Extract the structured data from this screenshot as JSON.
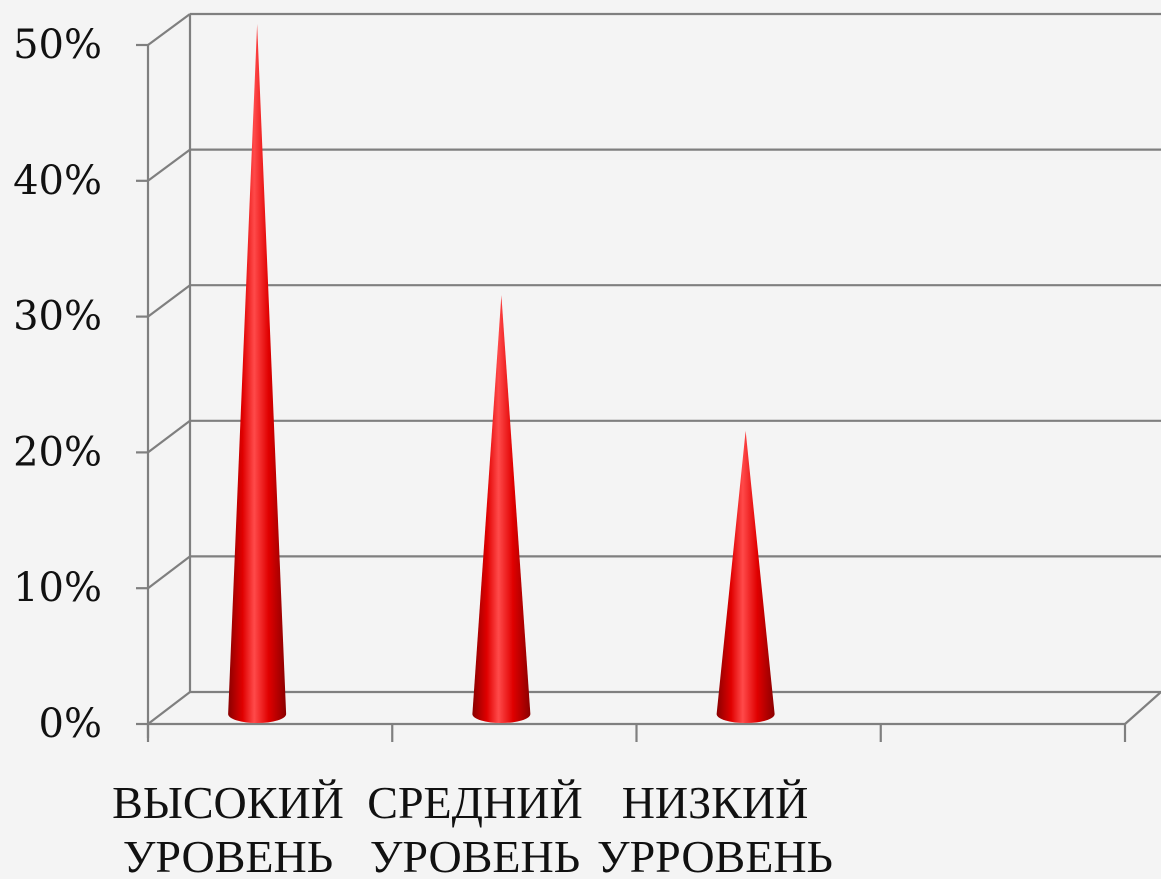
{
  "chart_data": {
    "type": "bar",
    "style": "3d-cone",
    "title": "",
    "xlabel": "",
    "ylabel": "",
    "categories": [
      [
        "ВЫСОКИЙ",
        "УРОВЕНЬ"
      ],
      [
        "СРЕДНИЙ",
        "УРОВЕНЬ"
      ],
      [
        "НИЗКИЙ",
        "УРРОВЕНЬ"
      ],
      [
        "",
        ""
      ]
    ],
    "values": [
      0.5,
      0.3,
      0.2,
      null
    ],
    "ylim": [
      0,
      0.5
    ],
    "yticks": [
      {
        "value": 0,
        "label": "0%"
      },
      {
        "value": 0.1,
        "label": "10%"
      },
      {
        "value": 0.2,
        "label": "20%"
      },
      {
        "value": 0.3,
        "label": "30%"
      },
      {
        "value": 0.4,
        "label": "40%"
      },
      {
        "value": 0.5,
        "label": "50%"
      }
    ],
    "grid": true,
    "legend": "none",
    "colors": {
      "cone": "#e00000",
      "cone_dark": "#8a0000",
      "cone_light": "#ff4a4a",
      "grid": "#7f7f7f",
      "axis": "#7f7f7f",
      "background": "#f4f4f4",
      "text": "#111111"
    }
  }
}
